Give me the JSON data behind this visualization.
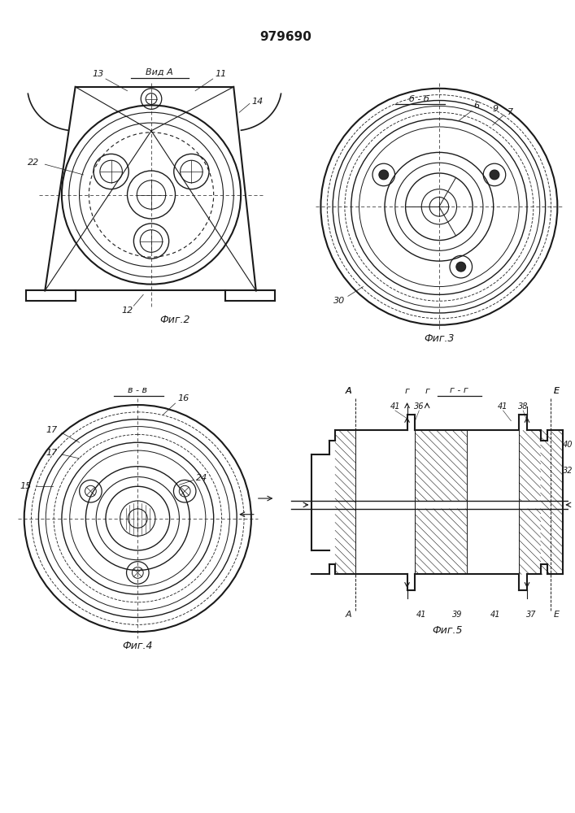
{
  "title": "979690",
  "bg_color": "#ffffff",
  "line_color": "#1a1a1a",
  "fig2_label": "Фиг.2",
  "fig3_label": "Фиг.3",
  "fig4_label": "Фиг.4",
  "fig5_label": "Фиг.5",
  "vid_a_label": "Вид А",
  "bb_label": "б - б",
  "vv_label": "в - в",
  "gg_label": "г - г"
}
